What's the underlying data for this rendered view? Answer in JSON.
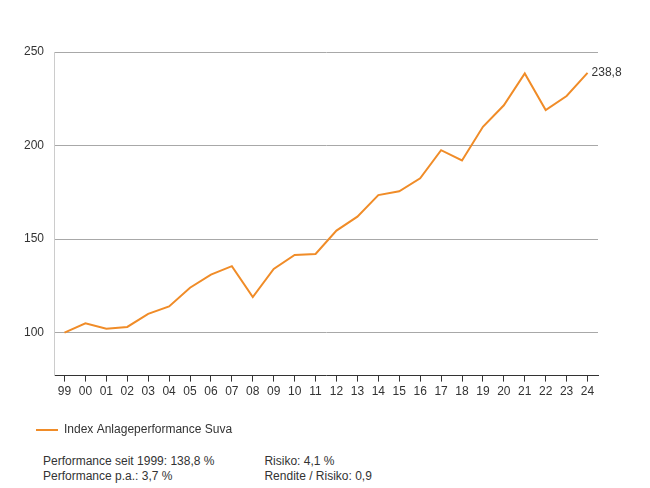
{
  "chart_data": {
    "type": "line",
    "categories": [
      "99",
      "00",
      "01",
      "02",
      "03",
      "04",
      "05",
      "06",
      "07",
      "08",
      "09",
      "10",
      "11",
      "12",
      "13",
      "14",
      "15",
      "16",
      "17",
      "18",
      "19",
      "20",
      "21",
      "22",
      "23",
      "24"
    ],
    "series": [
      {
        "name": "Index Anlageperformance Suva",
        "color": "#f08c28",
        "values": [
          100,
          105,
          102,
          103,
          110,
          114,
          124,
          131,
          135.5,
          119,
          134,
          141.5,
          142,
          154.5,
          162,
          173.5,
          175.5,
          182.5,
          197.5,
          192,
          210,
          221.5,
          238.5,
          219,
          226.5,
          238.8
        ]
      }
    ],
    "ylim": [
      77,
      250
    ],
    "yticks": [
      100,
      150,
      200,
      250
    ],
    "grid": true,
    "legend": "bottom-left",
    "annotations": [
      {
        "text": "238,8",
        "x": "24",
        "y": 238.8
      }
    ],
    "footnotes": [
      [
        "Performance seit 1999: 138,8 %",
        "Performance p.a.: 3,7 %"
      ],
      [
        "Risiko: 4,1 %",
        "Rendite / Risiko: 0,9"
      ]
    ]
  }
}
